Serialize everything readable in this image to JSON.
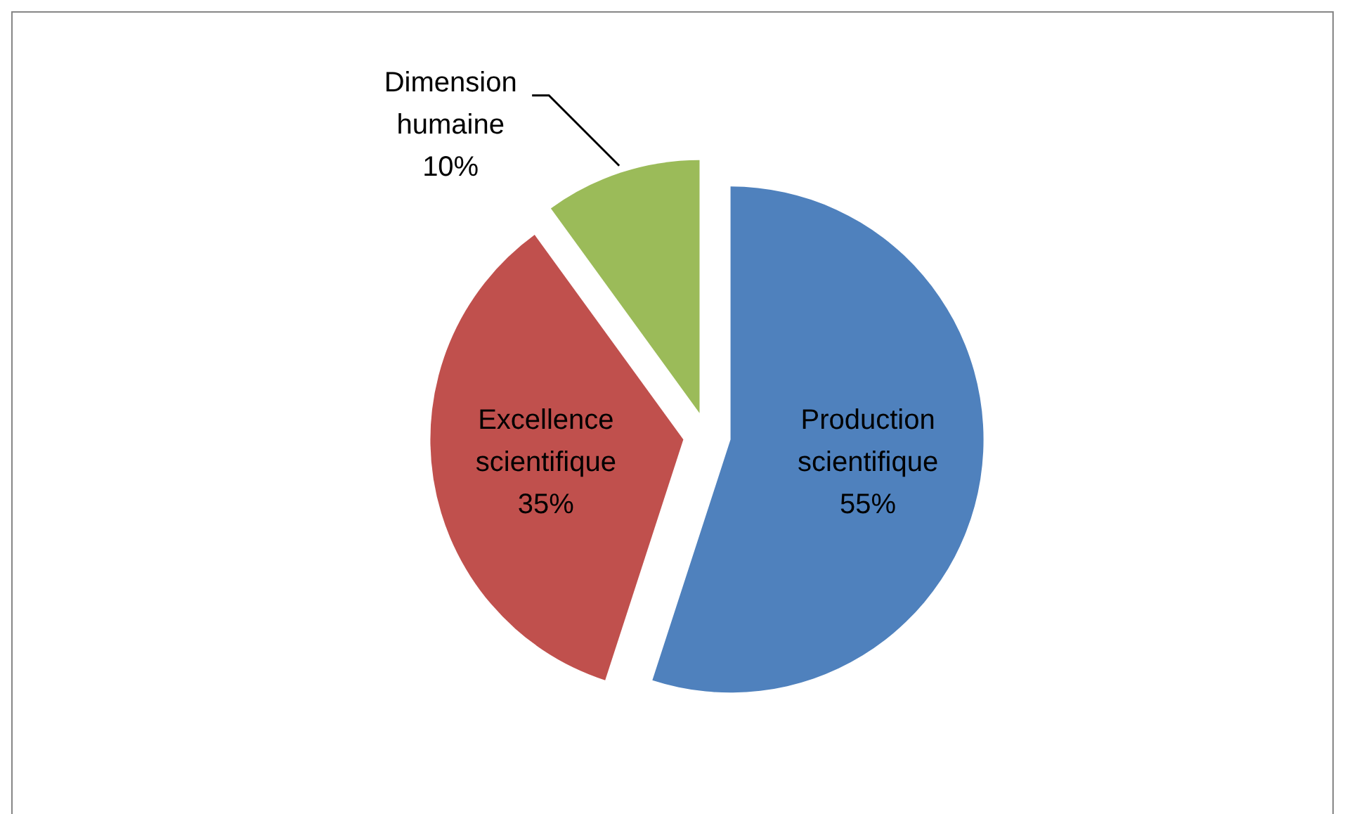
{
  "chart_data": {
    "type": "pie",
    "categories": [
      "Production scientifique",
      "Excellence scientifique",
      "Dimension humaine"
    ],
    "values": [
      55,
      35,
      10
    ],
    "value_labels": [
      "55%",
      "35%",
      "10%"
    ],
    "colors": [
      "#4f81bd",
      "#c0504d",
      "#9bbb59"
    ]
  }
}
